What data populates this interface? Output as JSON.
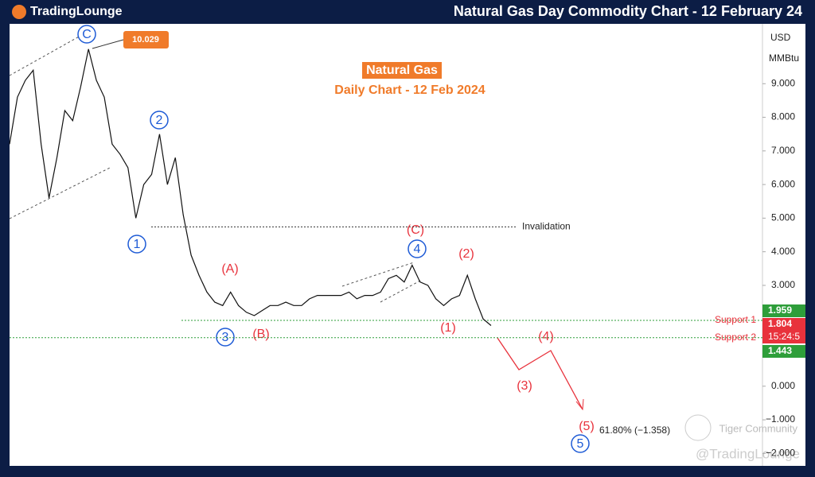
{
  "brand": "TradingLounge",
  "chart_data": {
    "type": "line",
    "title": "Natural Gas Day Commodity Chart - 12 February 24",
    "subtitle": [
      "Natural Gas",
      "Daily Chart - 12 Feb 2024"
    ],
    "currency": "USD",
    "unit": "MMBtu",
    "color": "#111111",
    "values": [
      7.2,
      8.6,
      9.1,
      9.4,
      7.2,
      5.6,
      6.8,
      8.2,
      7.9,
      8.9,
      10.029,
      9.1,
      8.6,
      7.2,
      6.9,
      6.5,
      5.0,
      6.0,
      6.3,
      7.5,
      6.0,
      6.8,
      5.1,
      3.9,
      3.3,
      2.8,
      2.5,
      2.4,
      2.8,
      2.4,
      2.2,
      2.1,
      2.25,
      2.4,
      2.4,
      2.5,
      2.4,
      2.4,
      2.6,
      2.7,
      2.7,
      2.7,
      2.7,
      2.8,
      2.6,
      2.7,
      2.7,
      2.8,
      3.2,
      3.3,
      3.1,
      3.6,
      3.1,
      3.0,
      2.6,
      2.4,
      2.6,
      2.7,
      3.3,
      2.6,
      2.0,
      1.804
    ],
    "countdown": "15:24:5",
    "ylim": [
      -2.37,
      10.78
    ],
    "yticks": [
      {
        "value": 9,
        "label": "9.000"
      },
      {
        "value": 8,
        "label": "8.000"
      },
      {
        "value": 7,
        "label": "7.000"
      },
      {
        "value": 6,
        "label": "6.000"
      },
      {
        "value": 5,
        "label": "5.000"
      },
      {
        "value": 4,
        "label": "4.000"
      },
      {
        "value": 3,
        "label": "3.000"
      },
      {
        "value": 0,
        "label": "0.000"
      },
      {
        "value": -1,
        "label": "−1.000"
      },
      {
        "value": -2,
        "label": "−2.000"
      }
    ],
    "levels": [
      {
        "name": "Invalidation",
        "value": 4.74,
        "color": "#333333"
      },
      {
        "name": "Support 1",
        "value": 1.959,
        "color": "#2e9e3a"
      },
      {
        "name": "Support 2",
        "value": 1.443,
        "color": "#2e9e3a"
      }
    ],
    "waves_blue": [
      "C",
      "2",
      "1",
      "3",
      "4",
      "5"
    ],
    "waves_red": [
      "(A)",
      "(B)",
      "(C)",
      "(1)",
      "(2)",
      "(3)",
      "(4)",
      "(5)"
    ],
    "fib": "61.80% (−1.358)"
  },
  "watermark": [
    "Tiger Community",
    "@TradingLounge"
  ]
}
